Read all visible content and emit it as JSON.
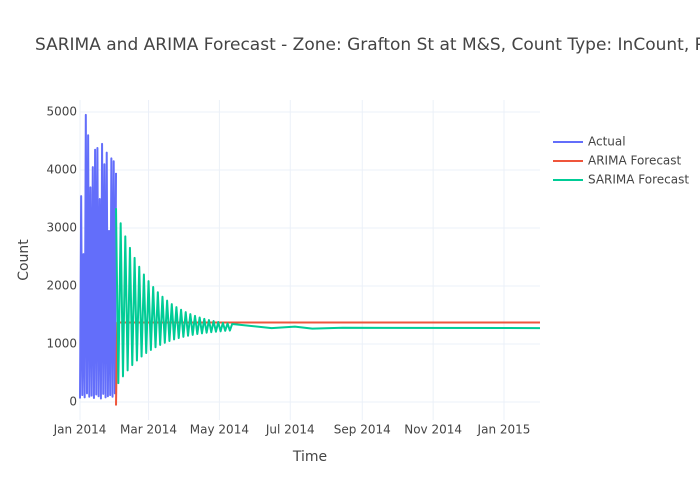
{
  "chart_data": {
    "type": "line",
    "title": "SARIMA and ARIMA Forecast - Zone: Grafton St at M&S, Count Type: InCount, Predict",
    "x_label": "Time",
    "y_label": "Count",
    "xlim": [
      "2014-01-01",
      "2015-02-01"
    ],
    "xticks": [
      {
        "value": "2014-01-01",
        "label": "Jan 2014"
      },
      {
        "value": "2014-03-01",
        "label": "Mar 2014"
      },
      {
        "value": "2014-05-01",
        "label": "May 2014"
      },
      {
        "value": "2014-07-01",
        "label": "Jul 2014"
      },
      {
        "value": "2014-09-01",
        "label": "Sep 2014"
      },
      {
        "value": "2014-11-01",
        "label": "Nov 2014"
      },
      {
        "value": "2015-01-01",
        "label": "Jan 2015"
      }
    ],
    "ylim": [
      -310,
      5207
    ],
    "yticks": [
      0,
      1000,
      2000,
      3000,
      4000,
      5000
    ],
    "grid": true,
    "series": [
      {
        "name": "Actual",
        "color": "#636efa",
        "x": [
          "2014-01-01",
          "2014-01-02",
          "2014-01-03",
          "2014-01-04",
          "2014-01-05",
          "2014-01-06",
          "2014-01-07",
          "2014-01-08",
          "2014-01-09",
          "2014-01-10",
          "2014-01-11",
          "2014-01-12",
          "2014-01-13",
          "2014-01-14",
          "2014-01-15",
          "2014-01-16",
          "2014-01-17",
          "2014-01-18",
          "2014-01-19",
          "2014-01-20",
          "2014-01-21",
          "2014-01-22",
          "2014-01-23",
          "2014-01-24",
          "2014-01-25",
          "2014-01-26",
          "2014-01-27",
          "2014-01-28",
          "2014-01-29",
          "2014-01-30",
          "2014-01-31",
          "2014-02-01"
        ],
        "values": [
          60,
          3550,
          120,
          2550,
          80,
          4950,
          150,
          4600,
          90,
          3700,
          110,
          4050,
          70,
          4350,
          130,
          4380,
          100,
          3500,
          60,
          4450,
          140,
          4100,
          80,
          4300,
          100,
          2950,
          120,
          4200,
          90,
          4150,
          150,
          3950
        ]
      },
      {
        "name": "ARIMA Forecast",
        "color": "#ef553b",
        "x": [
          "2014-02-01",
          "2014-02-02",
          "2015-02-01"
        ],
        "values": [
          -60,
          1370,
          1370
        ]
      },
      {
        "name": "SARIMA Forecast",
        "color": "#00cc96",
        "x": [
          "2014-02-01",
          "2014-02-03",
          "2014-02-05",
          "2014-02-07",
          "2014-02-09",
          "2014-02-11",
          "2014-02-13",
          "2014-02-15",
          "2014-02-17",
          "2014-02-19",
          "2014-02-21",
          "2014-02-23",
          "2014-02-25",
          "2014-02-27",
          "2014-03-01",
          "2014-03-03",
          "2014-03-05",
          "2014-03-07",
          "2014-03-09",
          "2014-03-11",
          "2014-03-13",
          "2014-03-15",
          "2014-03-17",
          "2014-03-19",
          "2014-03-21",
          "2014-03-23",
          "2014-03-25",
          "2014-03-27",
          "2014-03-29",
          "2014-03-31",
          "2014-04-02",
          "2014-04-04",
          "2014-04-06",
          "2014-04-08",
          "2014-04-10",
          "2014-04-12",
          "2014-04-14",
          "2014-04-16",
          "2014-04-18",
          "2014-04-20",
          "2014-04-22",
          "2014-04-24",
          "2014-04-26",
          "2014-04-28",
          "2014-04-30",
          "2014-05-02",
          "2014-05-04",
          "2014-05-06",
          "2014-05-08",
          "2014-05-10",
          "2014-05-12",
          "2014-06-15",
          "2014-07-05",
          "2014-07-20",
          "2014-08-15",
          "2015-02-01"
        ],
        "values": [
          3340,
          325,
          3081,
          443,
          2856,
          546,
          2657,
          637,
          2485,
          716,
          2332,
          785,
          2199,
          846,
          2084,
          898,
          1982,
          945,
          1893,
          985,
          1816,
          1021,
          1748,
          1052,
          1688,
          1079,
          1636,
          1103,
          1591,
          1124,
          1549,
          1142,
          1516,
          1158,
          1485,
          1172,
          1458,
          1184,
          1434,
          1195,
          1413,
          1204,
          1396,
          1212,
          1380,
          1219,
          1365,
          1227,
          1355,
          1232,
          1345,
          1275,
          1300,
          1265,
          1280,
          1275
        ]
      }
    ]
  }
}
